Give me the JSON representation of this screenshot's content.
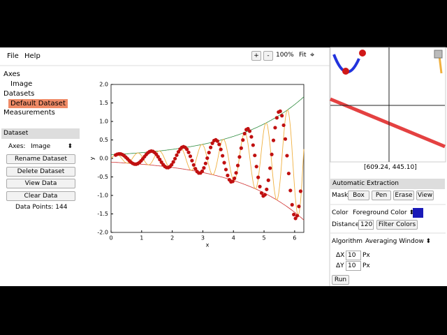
{
  "menu": [
    "File",
    "Help"
  ],
  "toolbar": {
    "zoom_in": "+",
    "zoom_out": "-",
    "zoom": "100%",
    "fit": "Fit"
  },
  "tree": {
    "axes": "Axes",
    "axes_item": "Image",
    "datasets": "Datasets",
    "dataset_item": "Default Dataset",
    "measurements": "Measurements"
  },
  "dataset_panel": {
    "header": "Dataset",
    "axes_label": "Axes:",
    "axes_value": "Image",
    "buttons": [
      "Rename Dataset",
      "Delete Dataset",
      "View Data",
      "Clear Data"
    ],
    "data_points_label": "Data Points:",
    "data_points": 144
  },
  "plot": {
    "xlabel": "x",
    "ylabel": "y",
    "xlim": [
      0,
      6.3
    ],
    "ylim": [
      -2,
      2
    ],
    "xticks": [
      0,
      1,
      2,
      3,
      4,
      5,
      6
    ],
    "yticks": [
      {
        "value": 2,
        "label": "2.0"
      },
      1.5,
      {
        "value": 1,
        "label": "1.0"
      },
      0.5,
      {
        "value": 0,
        "label": "0.0"
      },
      -0.5,
      {
        "value": -1,
        "label": "-1.0"
      },
      -1.5,
      {
        "value": -2,
        "label": "-2.0"
      }
    ]
  },
  "zoom_view": {
    "coords": "[609.24, 445.10]"
  },
  "extraction": {
    "header": "Automatic Extraction",
    "mask_label": "Mask",
    "mask_buttons": [
      "Box",
      "Pen",
      "Erase",
      "View"
    ],
    "color_label": "Color",
    "color_value": "Foreground Color",
    "distance_label": "Distance",
    "distance_value": "120",
    "filter_button": "Filter Colors",
    "algorithm_label": "Algorithm",
    "algorithm_value": "Averaging Window",
    "dx_label": "ΔX",
    "dx_value": "10",
    "dy_label": "ΔY",
    "dy_value": "10",
    "unit": "Px",
    "run": "Run"
  }
}
